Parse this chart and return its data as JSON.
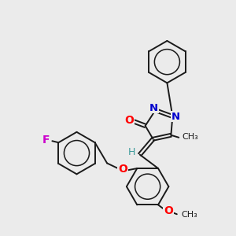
{
  "background_color": "#ebebeb",
  "bond_color": "#1a1a1a",
  "atom_colors": {
    "O": "#ff0000",
    "N": "#0000cd",
    "F": "#cc00cc",
    "H": "#3a9a9a",
    "C": "#1a1a1a"
  },
  "fig_size": [
    3.0,
    3.0
  ],
  "dpi": 100
}
